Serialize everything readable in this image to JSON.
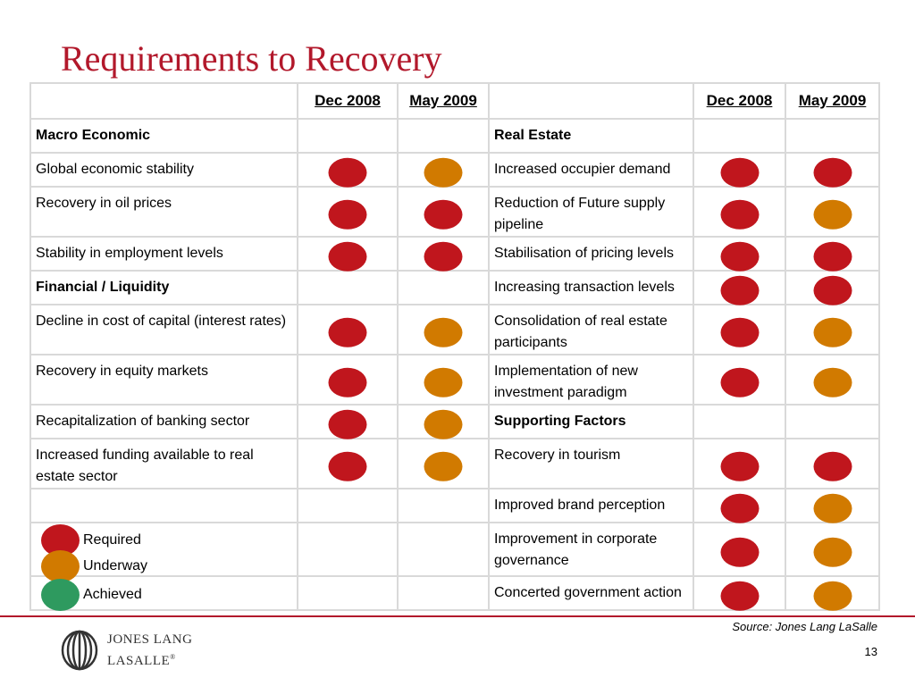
{
  "title": "Requirements to Recovery",
  "colors": {
    "title": "#b2182b",
    "required": "#c0161d",
    "underway": "#d17a00",
    "achieved": "#2e9a5f"
  },
  "headers": {
    "dec": "Dec 2008",
    "may": "May 2009"
  },
  "left_rows": [
    {
      "label": "Macro Economic",
      "bold": true,
      "dec": "",
      "may": ""
    },
    {
      "label": "Global economic stability",
      "bold": false,
      "dec": "required",
      "may": "underway"
    },
    {
      "label": "Recovery in oil prices",
      "bold": false,
      "dec": "required",
      "may": "required"
    },
    {
      "label": "Stability in employment levels",
      "bold": false,
      "dec": "required",
      "may": "required"
    },
    {
      "label": "Financial / Liquidity",
      "bold": true,
      "dec": "",
      "may": ""
    },
    {
      "label": "Decline in cost of capital (interest rates)",
      "bold": false,
      "dec": "required",
      "may": "underway"
    },
    {
      "label": "Recovery in equity markets",
      "bold": false,
      "dec": "required",
      "may": "underway"
    },
    {
      "label": "Recapitalization of banking sector",
      "bold": false,
      "dec": "required",
      "may": "underway"
    },
    {
      "label": "Increased funding available to real estate sector",
      "bold": false,
      "dec": "required",
      "may": "underway"
    },
    {
      "label": "",
      "bold": false,
      "dec": "",
      "may": ""
    },
    {
      "label": "",
      "bold": false,
      "dec": "",
      "may": ""
    },
    {
      "label": "",
      "bold": false,
      "dec": "",
      "may": ""
    }
  ],
  "right_rows": [
    {
      "label": "Real Estate",
      "bold": true,
      "dec": "",
      "may": ""
    },
    {
      "label": "Increased occupier demand",
      "bold": false,
      "dec": "required",
      "may": "required"
    },
    {
      "label": "Reduction of Future supply pipeline",
      "bold": false,
      "dec": "required",
      "may": "underway"
    },
    {
      "label": "Stabilisation of pricing levels",
      "bold": false,
      "dec": "required",
      "may": "required"
    },
    {
      "label": "Increasing transaction levels",
      "bold": false,
      "dec": "required",
      "may": "required"
    },
    {
      "label": "Consolidation of real estate participants",
      "bold": false,
      "dec": "required",
      "may": "underway"
    },
    {
      "label": "Implementation of new investment paradigm",
      "bold": false,
      "dec": "required",
      "may": "underway"
    },
    {
      "label": "Supporting Factors",
      "bold": true,
      "dec": "",
      "may": ""
    },
    {
      "label": "Recovery in tourism",
      "bold": false,
      "dec": "required",
      "may": "required"
    },
    {
      "label": "Improved brand perception",
      "bold": false,
      "dec": "required",
      "may": "underway"
    },
    {
      "label": "Improvement in corporate governance",
      "bold": false,
      "dec": "required",
      "may": "underway"
    },
    {
      "label": "Concerted government action",
      "bold": false,
      "dec": "required",
      "may": "underway"
    }
  ],
  "legend": [
    {
      "status": "required",
      "label": "Required"
    },
    {
      "status": "underway",
      "label": "Underway"
    },
    {
      "status": "achieved",
      "label": "Achieved"
    }
  ],
  "source": "Source: Jones Lang LaSalle",
  "page_number": "13",
  "logo": {
    "line1": "JONES LANG",
    "line2": "LASALLE",
    "mark": "®"
  }
}
